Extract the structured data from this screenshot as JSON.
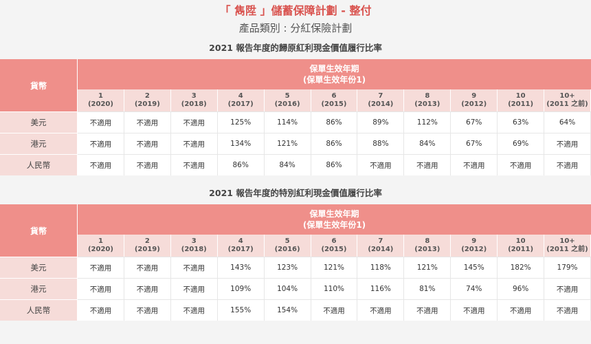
{
  "header": {
    "title": "「 雋陞 」儲蓄保障計劃 - 整付",
    "subtitle": "產品類別 : 分紅保險計劃"
  },
  "tables": [
    {
      "section_title": "2021 報告年度的歸原紅利現金價值履行比率",
      "currency_header": "貨幣",
      "period_header_line1": "保單生效年期",
      "period_header_line2": "(保單生效年份1)",
      "years": [
        {
          "n": "1",
          "y": "(2020)"
        },
        {
          "n": "2",
          "y": "(2019)"
        },
        {
          "n": "3",
          "y": "(2018)"
        },
        {
          "n": "4",
          "y": "(2017)"
        },
        {
          "n": "5",
          "y": "(2016)"
        },
        {
          "n": "6",
          "y": "(2015)"
        },
        {
          "n": "7",
          "y": "(2014)"
        },
        {
          "n": "8",
          "y": "(2013)"
        },
        {
          "n": "9",
          "y": "(2012)"
        },
        {
          "n": "10",
          "y": "(2011)"
        },
        {
          "n": "10+",
          "y": "(2011 之前)"
        }
      ],
      "rows": [
        {
          "currency": "美元",
          "values": [
            "不適用",
            "不適用",
            "不適用",
            "125%",
            "114%",
            "86%",
            "89%",
            "112%",
            "67%",
            "63%",
            "64%"
          ]
        },
        {
          "currency": "港元",
          "values": [
            "不適用",
            "不適用",
            "不適用",
            "134%",
            "121%",
            "86%",
            "88%",
            "84%",
            "67%",
            "69%",
            "不適用"
          ]
        },
        {
          "currency": "人民幣",
          "values": [
            "不適用",
            "不適用",
            "不適用",
            "86%",
            "84%",
            "86%",
            "不適用",
            "不適用",
            "不適用",
            "不適用",
            "不適用"
          ]
        }
      ]
    },
    {
      "section_title": "2021 報告年度的特別紅利現金價值履行比率",
      "currency_header": "貨幣",
      "period_header_line1": "保單生效年期",
      "period_header_line2": "(保單生效年份1)",
      "years": [
        {
          "n": "1",
          "y": "(2020)"
        },
        {
          "n": "2",
          "y": "(2019)"
        },
        {
          "n": "3",
          "y": "(2018)"
        },
        {
          "n": "4",
          "y": "(2017)"
        },
        {
          "n": "5",
          "y": "(2016)"
        },
        {
          "n": "6",
          "y": "(2015)"
        },
        {
          "n": "7",
          "y": "(2014)"
        },
        {
          "n": "8",
          "y": "(2013)"
        },
        {
          "n": "9",
          "y": "(2012)"
        },
        {
          "n": "10",
          "y": "(2011)"
        },
        {
          "n": "10+",
          "y": "(2011 之前)"
        }
      ],
      "rows": [
        {
          "currency": "美元",
          "values": [
            "不適用",
            "不適用",
            "不適用",
            "143%",
            "123%",
            "121%",
            "118%",
            "121%",
            "145%",
            "182%",
            "179%"
          ]
        },
        {
          "currency": "港元",
          "values": [
            "不適用",
            "不適用",
            "不適用",
            "109%",
            "104%",
            "110%",
            "116%",
            "81%",
            "74%",
            "96%",
            "不適用"
          ]
        },
        {
          "currency": "人民幣",
          "values": [
            "不適用",
            "不適用",
            "不適用",
            "155%",
            "154%",
            "不適用",
            "不適用",
            "不適用",
            "不適用",
            "不適用",
            "不適用"
          ]
        }
      ]
    }
  ]
}
